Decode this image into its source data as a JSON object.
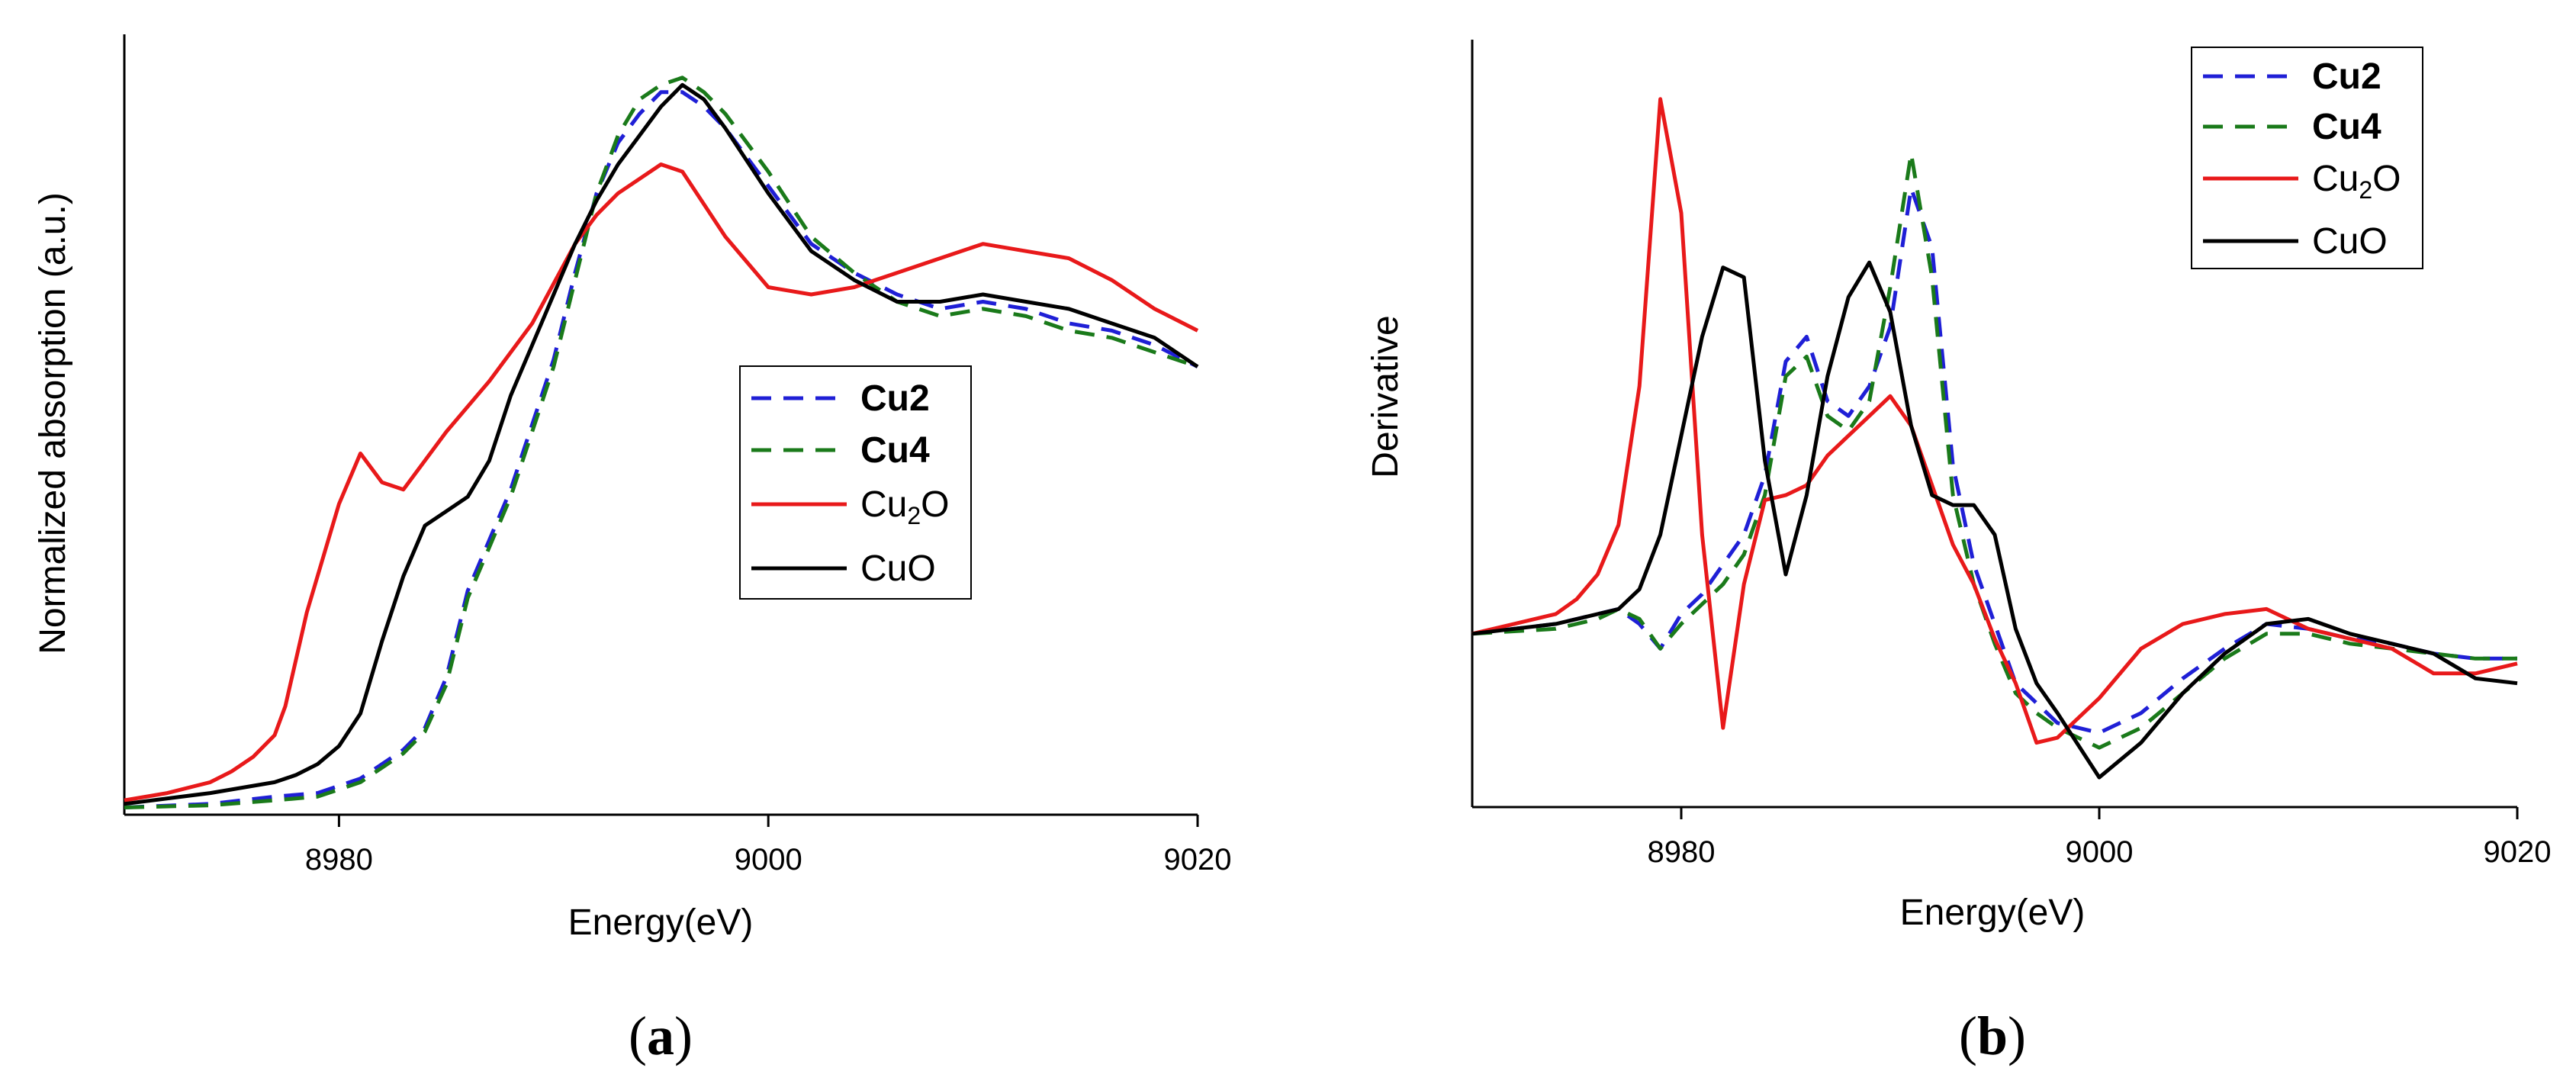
{
  "colors": {
    "Cu2": "#1f1fd6",
    "Cu4": "#1a7a1a",
    "Cu2O": "#e8191a",
    "CuO": "#000000"
  },
  "panel_labels": {
    "a_open": "(",
    "a_letter": "a",
    "a_close": ")",
    "b_open": "(",
    "b_letter": "b",
    "b_close": ")"
  },
  "chart_data": [
    {
      "type": "line",
      "panel": "a",
      "title": "",
      "xlabel": "Energy(eV)",
      "ylabel": "Normalized absorption (a.u.)",
      "xlim": [
        8970,
        9020
      ],
      "ylim": [
        0,
        1.08
      ],
      "xticks": [
        8980,
        9000,
        9020
      ],
      "xtick_labels": [
        "8980",
        "9000",
        "9020"
      ],
      "legend_position": "center-right",
      "legend": [
        {
          "key": "Cu2",
          "label": "Cu2",
          "style": "dashed",
          "bold": true
        },
        {
          "key": "Cu4",
          "label": "Cu4",
          "style": "dashed",
          "bold": true
        },
        {
          "key": "Cu2O",
          "label_main": "Cu",
          "label_sub": "2",
          "label_tail": "O",
          "style": "solid",
          "bold": false
        },
        {
          "key": "CuO",
          "label": "CuO",
          "style": "solid",
          "bold": false
        }
      ],
      "series": [
        {
          "name": "Cu2",
          "style": "dashed",
          "x": [
            8970,
            8974,
            8977,
            8979,
            8981,
            8983,
            8984,
            8985,
            8986,
            8987,
            8988,
            8990,
            8991,
            8992,
            8993,
            8994,
            8995,
            8996,
            8997,
            8998,
            9000,
            9002,
            9004,
            9006,
            9008,
            9010,
            9012,
            9014,
            9016,
            9018,
            9020
          ],
          "y": [
            0.01,
            0.015,
            0.025,
            0.03,
            0.05,
            0.09,
            0.12,
            0.19,
            0.31,
            0.38,
            0.45,
            0.63,
            0.75,
            0.86,
            0.93,
            0.97,
            1.0,
            1.0,
            0.98,
            0.95,
            0.87,
            0.79,
            0.75,
            0.72,
            0.7,
            0.71,
            0.7,
            0.68,
            0.67,
            0.65,
            0.62
          ]
        },
        {
          "name": "Cu4",
          "style": "dashed",
          "x": [
            8970,
            8974,
            8977,
            8979,
            8981,
            8983,
            8984,
            8985,
            8986,
            8987,
            8988,
            8990,
            8991,
            8992,
            8993,
            8994,
            8995,
            8996,
            8997,
            8998,
            9000,
            9002,
            9004,
            9006,
            9008,
            9010,
            9012,
            9014,
            9016,
            9018,
            9020
          ],
          "y": [
            0.01,
            0.013,
            0.02,
            0.025,
            0.045,
            0.085,
            0.115,
            0.18,
            0.3,
            0.37,
            0.44,
            0.62,
            0.74,
            0.86,
            0.94,
            0.99,
            1.01,
            1.02,
            1.0,
            0.97,
            0.89,
            0.8,
            0.75,
            0.71,
            0.69,
            0.7,
            0.69,
            0.67,
            0.66,
            0.64,
            0.62
          ]
        },
        {
          "name": "Cu2O",
          "style": "solid",
          "x": [
            8970,
            8972,
            8974,
            8975,
            8976,
            8977,
            8977.5,
            8978.5,
            8979.5,
            8980,
            8981,
            8982,
            8983,
            8985,
            8987,
            8989,
            8991,
            8992,
            8993,
            8994,
            8995,
            8996,
            8998,
            9000,
            9002,
            9004,
            9006,
            9008,
            9010,
            9012,
            9014,
            9016,
            9018,
            9020
          ],
          "y": [
            0.02,
            0.03,
            0.045,
            0.06,
            0.08,
            0.11,
            0.15,
            0.28,
            0.38,
            0.43,
            0.5,
            0.46,
            0.45,
            0.53,
            0.6,
            0.68,
            0.79,
            0.83,
            0.86,
            0.88,
            0.9,
            0.89,
            0.8,
            0.73,
            0.72,
            0.73,
            0.75,
            0.77,
            0.79,
            0.78,
            0.77,
            0.74,
            0.7,
            0.67
          ]
        },
        {
          "name": "CuO",
          "style": "solid",
          "x": [
            8970,
            8974,
            8977,
            8978,
            8979,
            8980,
            8981,
            8982,
            8983,
            8984,
            8985,
            8986,
            8987,
            8988,
            8989,
            8990,
            8991,
            8992,
            8993,
            8994,
            8995,
            8996,
            8997,
            8998,
            9000,
            9002,
            9004,
            9006,
            9008,
            9010,
            9012,
            9014,
            9016,
            9018,
            9020
          ],
          "y": [
            0.015,
            0.03,
            0.045,
            0.055,
            0.07,
            0.095,
            0.14,
            0.24,
            0.33,
            0.4,
            0.42,
            0.44,
            0.49,
            0.58,
            0.65,
            0.72,
            0.79,
            0.85,
            0.9,
            0.94,
            0.98,
            1.01,
            0.99,
            0.95,
            0.86,
            0.78,
            0.74,
            0.71,
            0.71,
            0.72,
            0.71,
            0.7,
            0.68,
            0.66,
            0.62
          ]
        }
      ]
    },
    {
      "type": "line",
      "panel": "b",
      "title": "",
      "xlabel": "Energy(eV)",
      "ylabel": "Derivative",
      "xlim": [
        8970,
        9020
      ],
      "ylim": [
        -0.35,
        1.2
      ],
      "xticks": [
        8980,
        9000,
        9020
      ],
      "xtick_labels": [
        "8980",
        "9000",
        "9020"
      ],
      "legend_position": "top-right",
      "legend": [
        {
          "key": "Cu2",
          "label": "Cu2",
          "style": "dashed",
          "bold": true
        },
        {
          "key": "Cu4",
          "label": "Cu4",
          "style": "dashed",
          "bold": true
        },
        {
          "key": "Cu2O",
          "label_main": "Cu",
          "label_sub": "2",
          "label_tail": "O",
          "style": "solid",
          "bold": false
        },
        {
          "key": "CuO",
          "label": "CuO",
          "style": "solid",
          "bold": false
        }
      ],
      "series": [
        {
          "name": "Cu2",
          "style": "dashed",
          "x": [
            8970,
            8974,
            8976,
            8977,
            8978,
            8979,
            8980,
            8981,
            8982,
            8983,
            8984,
            8985,
            8986,
            8987,
            8988,
            8989,
            8990,
            8991,
            8992,
            8993,
            8994,
            8995,
            8996,
            8997,
            8998,
            9000,
            9002,
            9004,
            9006,
            9008,
            9010,
            9012,
            9014,
            9016,
            9018,
            9020
          ],
          "y": [
            0.0,
            0.02,
            0.04,
            0.05,
            0.02,
            -0.03,
            0.04,
            0.08,
            0.14,
            0.2,
            0.32,
            0.55,
            0.6,
            0.47,
            0.44,
            0.5,
            0.62,
            0.9,
            0.78,
            0.34,
            0.14,
            0.02,
            -0.1,
            -0.14,
            -0.18,
            -0.2,
            -0.16,
            -0.09,
            -0.03,
            0.02,
            0.01,
            -0.01,
            -0.02,
            -0.04,
            -0.05,
            -0.05
          ]
        },
        {
          "name": "Cu4",
          "style": "dashed",
          "x": [
            8970,
            8974,
            8976,
            8977,
            8978,
            8979,
            8980,
            8981,
            8982,
            8983,
            8984,
            8985,
            8986,
            8987,
            8988,
            8989,
            8990,
            8991,
            8992,
            8993,
            8994,
            8995,
            8996,
            8997,
            8998,
            9000,
            9002,
            9004,
            9006,
            9008,
            9010,
            9012,
            9014,
            9016,
            9018,
            9020
          ],
          "y": [
            0.0,
            0.01,
            0.03,
            0.05,
            0.03,
            -0.03,
            0.02,
            0.06,
            0.1,
            0.16,
            0.28,
            0.52,
            0.56,
            0.44,
            0.41,
            0.47,
            0.7,
            0.97,
            0.72,
            0.28,
            0.1,
            -0.02,
            -0.12,
            -0.16,
            -0.19,
            -0.23,
            -0.19,
            -0.12,
            -0.05,
            0.0,
            0.0,
            -0.02,
            -0.03,
            -0.04,
            -0.05,
            -0.05
          ]
        },
        {
          "name": "Cu2O",
          "style": "solid",
          "x": [
            8970,
            8972,
            8974,
            8975,
            8976,
            8977,
            8978,
            8979,
            8980,
            8981,
            8982,
            8983,
            8984,
            8985,
            8986,
            8987,
            8988,
            8989,
            8990,
            8991,
            8992,
            8993,
            8994,
            8995,
            8996,
            8997,
            8998,
            9000,
            9002,
            9004,
            9006,
            9008,
            9010,
            9012,
            9014,
            9016,
            9018,
            9020
          ],
          "y": [
            0.0,
            0.02,
            0.04,
            0.07,
            0.12,
            0.22,
            0.5,
            1.08,
            0.85,
            0.2,
            -0.19,
            0.1,
            0.27,
            0.28,
            0.3,
            0.36,
            0.4,
            0.44,
            0.48,
            0.42,
            0.3,
            0.18,
            0.1,
            -0.01,
            -0.1,
            -0.22,
            -0.21,
            -0.13,
            -0.03,
            0.02,
            0.04,
            0.05,
            0.01,
            -0.01,
            -0.03,
            -0.08,
            -0.08,
            -0.06
          ]
        },
        {
          "name": "CuO",
          "style": "solid",
          "x": [
            8970,
            8972,
            8974,
            8976,
            8977,
            8978,
            8979,
            8980,
            8981,
            8982,
            8983,
            8984,
            8985,
            8986,
            8987,
            8988,
            8989,
            8990,
            8991,
            8992,
            8993,
            8994,
            8995,
            8996,
            8997,
            8998,
            9000,
            9002,
            9004,
            9006,
            9008,
            9010,
            9012,
            9014,
            9016,
            9018,
            9020
          ],
          "y": [
            0.0,
            0.01,
            0.02,
            0.04,
            0.05,
            0.09,
            0.2,
            0.4,
            0.6,
            0.74,
            0.72,
            0.35,
            0.12,
            0.28,
            0.52,
            0.68,
            0.75,
            0.65,
            0.42,
            0.28,
            0.26,
            0.26,
            0.2,
            0.01,
            -0.1,
            -0.16,
            -0.29,
            -0.22,
            -0.12,
            -0.04,
            0.02,
            0.03,
            0.0,
            -0.02,
            -0.04,
            -0.09,
            -0.1
          ]
        }
      ]
    }
  ]
}
